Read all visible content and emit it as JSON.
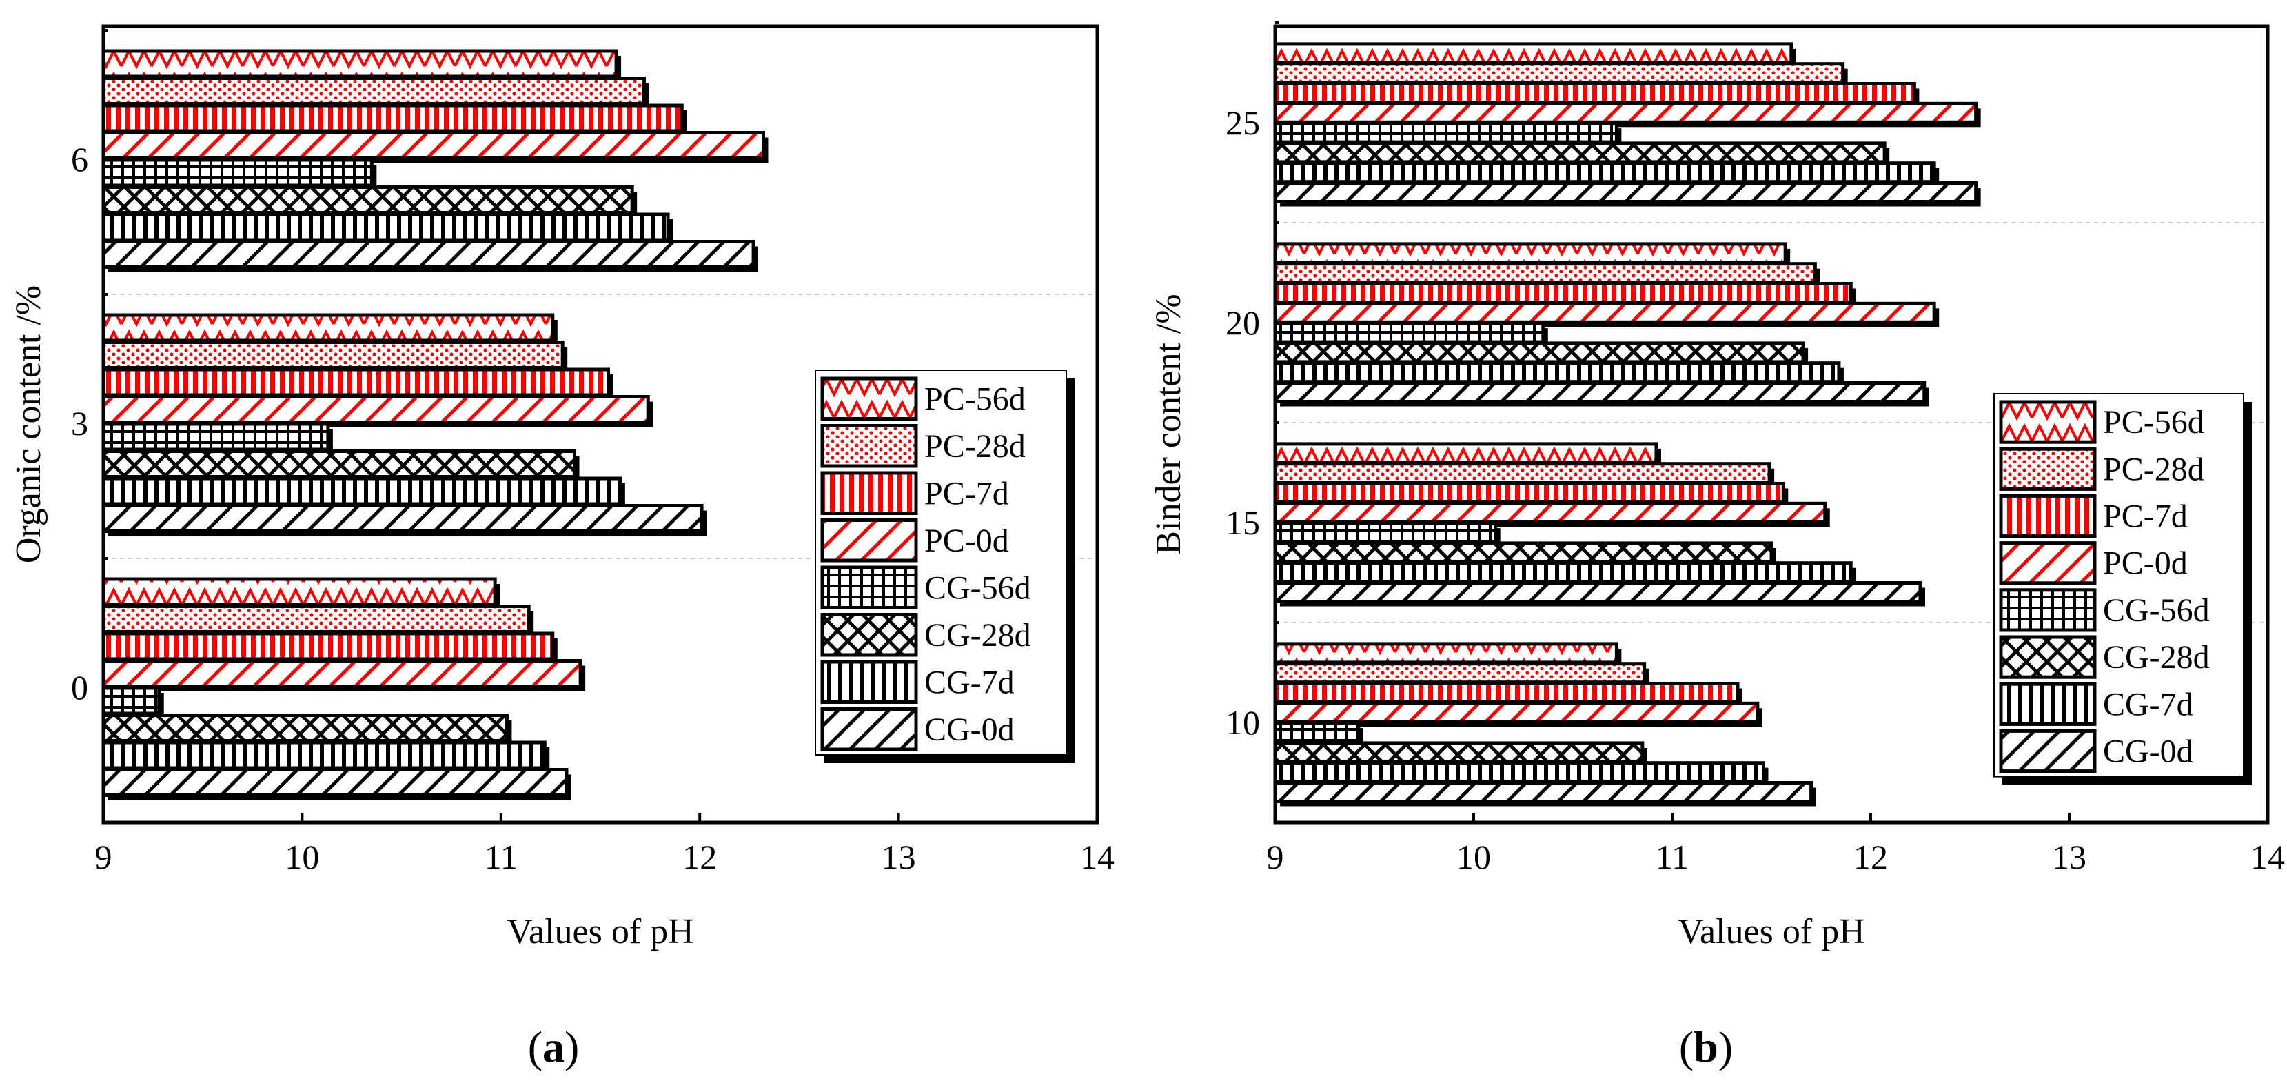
{
  "panel_labels": [
    {
      "open": "(",
      "letter": "a",
      "close": ")"
    },
    {
      "open": "(",
      "letter": "b",
      "close": ")"
    }
  ],
  "series_styles": {
    "PC-56d": {
      "color": "#ff0000",
      "pattern": "zigzag"
    },
    "PC-28d": {
      "color": "#ff0000",
      "pattern": "dots"
    },
    "PC-7d": {
      "color": "#ff0000",
      "pattern": "vertical-lines"
    },
    "PC-0d": {
      "color": "#ff0000",
      "pattern": "diagonal-lines"
    },
    "CG-56d": {
      "color": "#000000",
      "pattern": "grid"
    },
    "CG-28d": {
      "color": "#000000",
      "pattern": "crosshatch"
    },
    "CG-7d": {
      "color": "#000000",
      "pattern": "vertical-lines"
    },
    "CG-0d": {
      "color": "#000000",
      "pattern": "diagonal-lines"
    }
  },
  "chart_data": [
    {
      "type": "bar",
      "orientation": "horizontal",
      "title": "",
      "xlabel": "Values of pH",
      "ylabel": "Organic content /%",
      "xlim": [
        9,
        14
      ],
      "xticks": [
        "9",
        "10",
        "11",
        "12",
        "13",
        "14"
      ],
      "categories": [
        "0",
        "3",
        "6"
      ],
      "legend_position": "lower-right",
      "grid": "horizontal dashed lines between category groups",
      "series": [
        {
          "name": "PC-56d",
          "values": [
            10.97,
            11.26,
            11.58
          ]
        },
        {
          "name": "PC-28d",
          "values": [
            11.14,
            11.31,
            11.72
          ]
        },
        {
          "name": "PC-7d",
          "values": [
            11.26,
            11.54,
            11.91
          ]
        },
        {
          "name": "PC-0d",
          "values": [
            11.4,
            11.74,
            12.32
          ]
        },
        {
          "name": "CG-56d",
          "values": [
            9.28,
            10.13,
            10.35
          ]
        },
        {
          "name": "CG-28d",
          "values": [
            11.03,
            11.37,
            11.66
          ]
        },
        {
          "name": "CG-7d",
          "values": [
            11.22,
            11.6,
            11.84
          ]
        },
        {
          "name": "CG-0d",
          "values": [
            11.33,
            12.01,
            12.27
          ]
        }
      ]
    },
    {
      "type": "bar",
      "orientation": "horizontal",
      "title": "",
      "xlabel": "Values of pH",
      "ylabel": "Binder content /%",
      "xlim": [
        9,
        14
      ],
      "xticks": [
        "9",
        "10",
        "11",
        "12",
        "13",
        "14"
      ],
      "categories": [
        "10",
        "15",
        "20",
        "25"
      ],
      "legend_position": "lower-right",
      "grid": "horizontal dashed lines between category groups",
      "series": [
        {
          "name": "PC-56d",
          "values": [
            10.72,
            10.92,
            11.57,
            11.6
          ]
        },
        {
          "name": "PC-28d",
          "values": [
            10.86,
            11.49,
            11.72,
            11.86
          ]
        },
        {
          "name": "PC-7d",
          "values": [
            11.33,
            11.56,
            11.9,
            12.22
          ]
        },
        {
          "name": "PC-0d",
          "values": [
            11.43,
            11.77,
            12.32,
            12.53
          ]
        },
        {
          "name": "CG-56d",
          "values": [
            9.42,
            10.11,
            10.35,
            10.72
          ]
        },
        {
          "name": "CG-28d",
          "values": [
            10.85,
            11.5,
            11.66,
            12.07
          ]
        },
        {
          "name": "CG-7d",
          "values": [
            11.46,
            11.9,
            11.84,
            12.32
          ]
        },
        {
          "name": "CG-0d",
          "values": [
            11.7,
            12.25,
            12.27,
            12.53
          ]
        }
      ]
    }
  ]
}
